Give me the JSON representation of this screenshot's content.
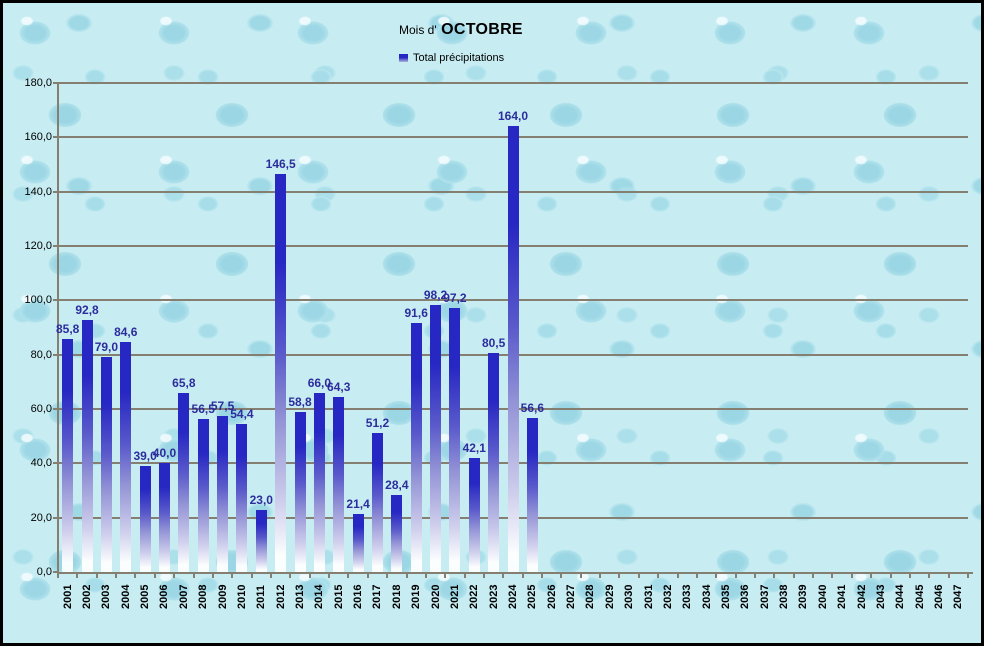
{
  "chart": {
    "title_prefix": "Mois d'",
    "title_month": "OCTOBRE",
    "legend_label": "Total précipitations"
  },
  "colors": {
    "bar_top": "#2727c3",
    "bar_mid": "#9393d6",
    "value_label": "#2c2c9c",
    "gridline": "#857f72",
    "background_base": "#c7edf3",
    "text": "#000000"
  },
  "chart_data": {
    "type": "bar",
    "title": "Mois d' OCTOBRE",
    "series_name": "Total précipitations",
    "legend_position": "top",
    "grid": true,
    "xlabel": "",
    "ylabel": "",
    "ylim": [
      0,
      180
    ],
    "ytick_step": 20,
    "ytick_labels": [
      "0,0",
      "20,0",
      "40,0",
      "60,0",
      "80,0",
      "100,0",
      "120,0",
      "140,0",
      "160,0",
      "180,0"
    ],
    "categories": [
      "2001",
      "2002",
      "2003",
      "2004",
      "2005",
      "2006",
      "2007",
      "2008",
      "2009",
      "2010",
      "2011",
      "2012",
      "2013",
      "2014",
      "2015",
      "2016",
      "2017",
      "2018",
      "2019",
      "2020",
      "2021",
      "2022",
      "2023",
      "2024",
      "2025",
      "2026",
      "2027",
      "2028",
      "2029",
      "2030",
      "2031",
      "2032",
      "2033",
      "2034",
      "2035",
      "2036",
      "2037",
      "2038",
      "2039",
      "2040",
      "2041",
      "2042",
      "2043",
      "2044",
      "2045",
      "2046",
      "2047"
    ],
    "values": [
      85.8,
      92.8,
      79.0,
      84.6,
      39.0,
      40.0,
      65.8,
      56.5,
      57.5,
      54.4,
      23.0,
      146.5,
      58.8,
      66.0,
      64.3,
      21.4,
      51.2,
      28.4,
      91.6,
      98.2,
      97.2,
      42.1,
      80.5,
      164.0,
      56.6,
      null,
      null,
      null,
      null,
      null,
      null,
      null,
      null,
      null,
      null,
      null,
      null,
      null,
      null,
      null,
      null,
      null,
      null,
      null,
      null,
      null,
      null
    ],
    "value_labels": [
      "85,8",
      "92,8",
      "79,0",
      "84,6",
      "39,0",
      "40,0",
      "65,8",
      "56,5",
      "57,5",
      "54,4",
      "23,0",
      "146,5",
      "58,8",
      "66,0",
      "64,3",
      "21,4",
      "51,2",
      "28,4",
      "91,6",
      "98,2",
      "97,2",
      "42,1",
      "80,5",
      "164,0",
      "56,6"
    ]
  }
}
